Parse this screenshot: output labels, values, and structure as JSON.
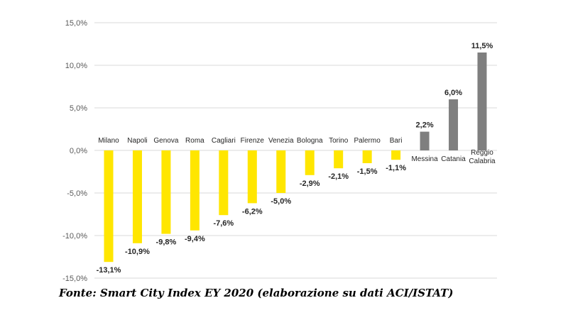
{
  "chart_data": {
    "type": "bar",
    "categories": [
      "Milano",
      "Napoli",
      "Genova",
      "Roma",
      "Cagliari",
      "Firenze",
      "Venezia",
      "Bologna",
      "Torino",
      "Palermo",
      "Bari",
      "Messina",
      "Catania",
      "Reggio Calabria"
    ],
    "values": [
      -13.1,
      -10.9,
      -9.8,
      -9.4,
      -7.6,
      -6.2,
      -5.0,
      -2.9,
      -2.1,
      -1.5,
      -1.1,
      2.2,
      6.0,
      11.5
    ],
    "data_labels": [
      "-13,1%",
      "-10,9%",
      "-9,8%",
      "-9,4%",
      "-7,6%",
      "-6,2%",
      "-5,0%",
      "-2,9%",
      "-2,1%",
      "-1,5%",
      "-1,1%",
      "2,2%",
      "6,0%",
      "11,5%"
    ],
    "ylim": [
      -15,
      15
    ],
    "yticks": [
      15,
      10,
      5,
      0,
      -5,
      -10,
      -15
    ],
    "ytick_labels": [
      "15,0%",
      "10,0%",
      "5,0%",
      "0,0%",
      "-5,0%",
      "-10,0%",
      "-15,0%"
    ],
    "grid": true,
    "colors": {
      "negative": "#FFE600",
      "positive": "#7F7F7F"
    },
    "title": "",
    "xlabel": "",
    "ylabel": ""
  },
  "caption": "Fonte: Smart City Index EY 2020 (elaborazione su dati ACI/ISTAT)"
}
